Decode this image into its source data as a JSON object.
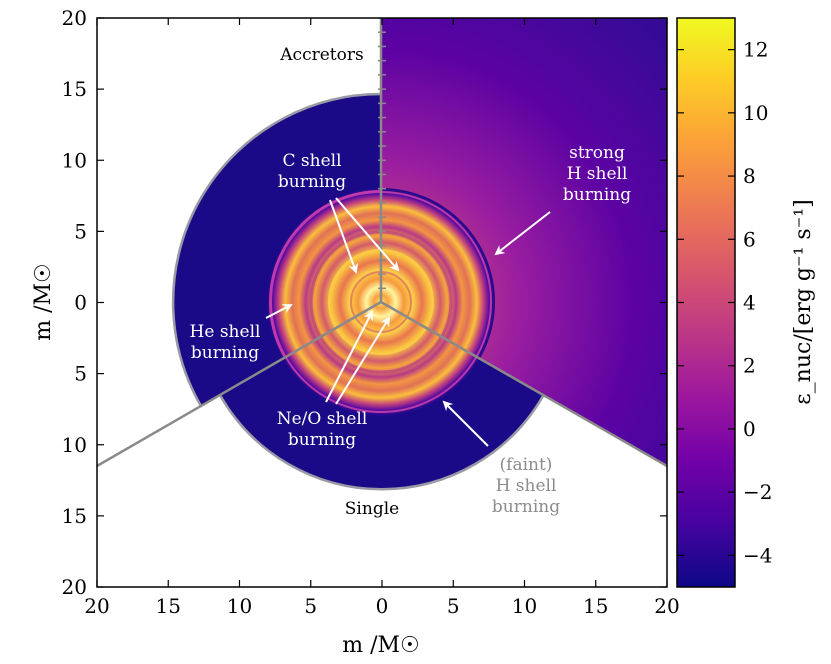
{
  "chart_data": {
    "type": "heatmap",
    "title": "",
    "xlabel": "m /M☉",
    "ylabel": "m /M☉",
    "xlim": [
      -20,
      20
    ],
    "ylim": [
      -20,
      20
    ],
    "x_ticks": [
      -20,
      -15,
      -10,
      -5,
      0,
      5,
      10,
      15,
      20
    ],
    "x_tick_labels": [
      "20",
      "15",
      "10",
      "5",
      "0",
      "5",
      "10",
      "15",
      "20"
    ],
    "y_ticks": [
      20,
      15,
      10,
      5,
      0,
      -5,
      -10,
      -15,
      -20
    ],
    "y_tick_labels": [
      "20",
      "15",
      "10",
      "5",
      "0",
      "5",
      "10",
      "15",
      "20"
    ],
    "colorbar": {
      "label": "ε_nuc/[erg g⁻¹ s⁻¹]",
      "range": [
        -5,
        13
      ],
      "ticks": [
        12,
        10,
        8,
        6,
        4,
        2,
        0,
        -2,
        -4
      ],
      "tick_labels": [
        "12",
        "10",
        "8",
        "6",
        "4",
        "2",
        "0",
        "−2",
        "−4"
      ],
      "colors": [
        "#0d0887",
        "#46039f",
        "#7201a8",
        "#9c179e",
        "#bd3786",
        "#d8576b",
        "#ed7953",
        "#fb9f3a",
        "#fdca26",
        "#f0f921"
      ]
    },
    "sectors": [
      {
        "name": "Accretors",
        "outer_radius_msun": 20
      },
      {
        "name": "Single",
        "outer_radius_msun": 13
      },
      {
        "name": "Single",
        "outer_radius_msun": 15
      }
    ],
    "annotations": [
      {
        "lines": [
          "Accretors"
        ],
        "color": "#000000"
      },
      {
        "lines": [
          "Single"
        ],
        "color": "#000000"
      },
      {
        "lines": [
          "C shell",
          "burning"
        ],
        "color": "#ffffff"
      },
      {
        "lines": [
          "strong",
          "H shell",
          "burning"
        ],
        "color": "#ffffff"
      },
      {
        "lines": [
          "He shell",
          "burning"
        ],
        "color": "#ffffff"
      },
      {
        "lines": [
          "Ne/O shell",
          "burning"
        ],
        "color": "#ffffff"
      },
      {
        "lines": [
          "(faint)",
          "H shell",
          "burning"
        ],
        "color": "#8c8c8c"
      }
    ]
  }
}
